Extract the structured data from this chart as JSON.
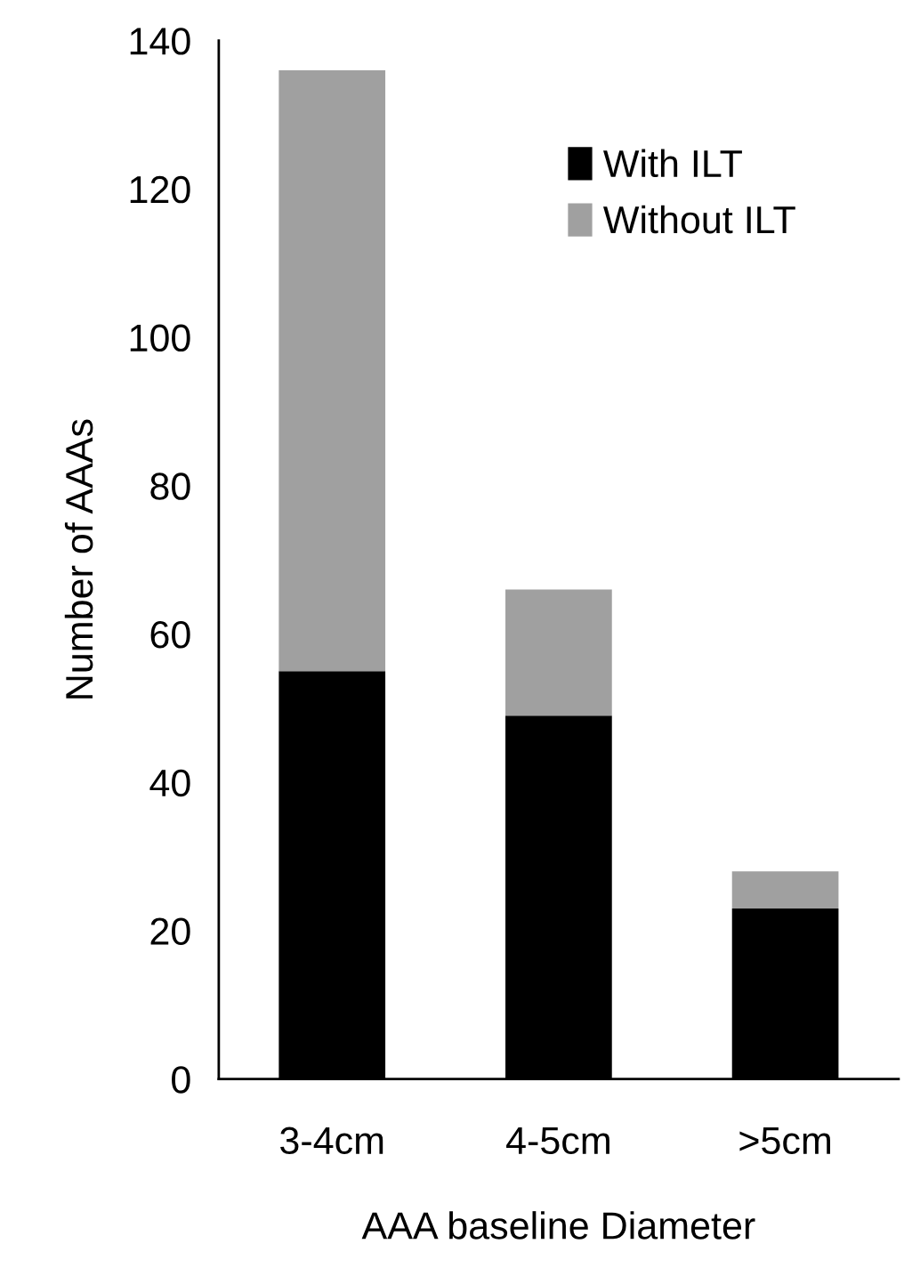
{
  "chart_data": {
    "type": "bar",
    "stacked": true,
    "xlabel": "AAA baseline Diameter",
    "ylabel": "Number of AAAs",
    "categories": [
      "3-4cm",
      "4-5cm",
      ">5cm"
    ],
    "series": [
      {
        "name": "With ILT",
        "color": "#000000",
        "values": [
          55,
          49,
          23
        ]
      },
      {
        "name": "Without ILT",
        "color": "#a0a0a0",
        "values": [
          81,
          17,
          5
        ]
      }
    ],
    "ylim": [
      0,
      140
    ],
    "yticks": [
      0,
      20,
      40,
      60,
      80,
      100,
      120,
      140
    ],
    "grid": false,
    "legend": "top right"
  }
}
